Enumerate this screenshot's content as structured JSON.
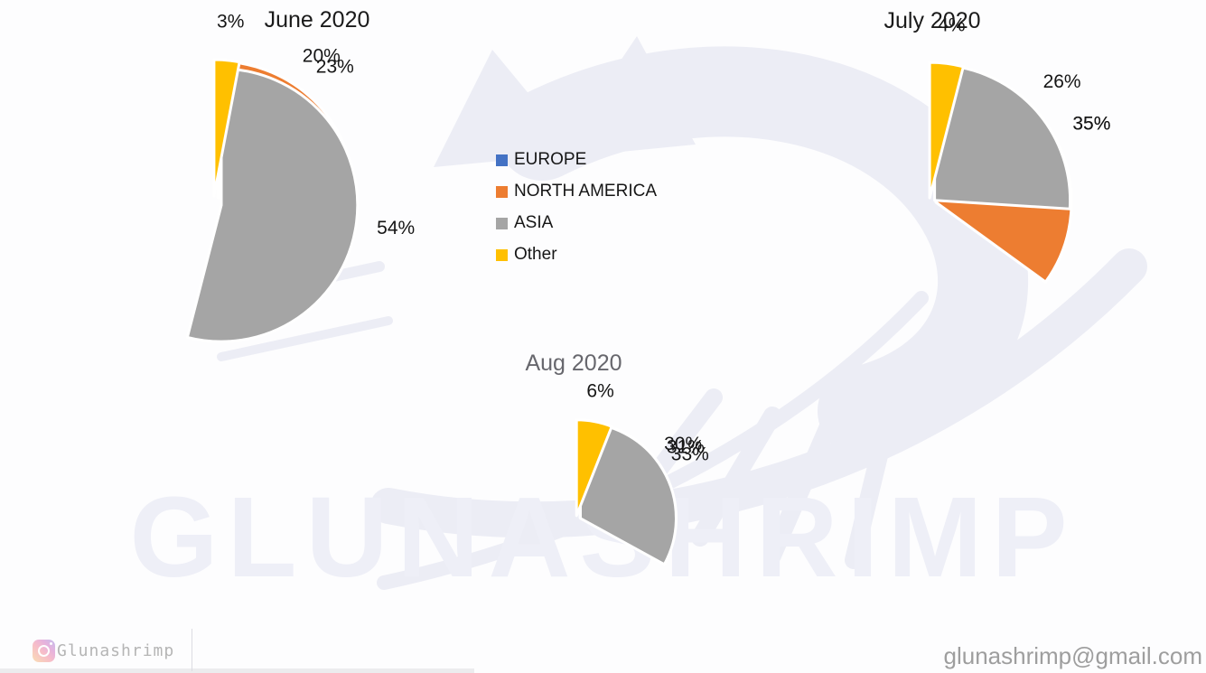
{
  "watermark": {
    "brand_text": "GLUNASHRIMP",
    "instagram_handle": "Glunashrimp",
    "email": "glunashrimp@gmail.com"
  },
  "legend": {
    "position": "center-left-of-july-chart",
    "items": [
      {
        "label": "EUROPE",
        "color": "#4472C4"
      },
      {
        "label": "NORTH AMERICA",
        "color": "#ED7D31"
      },
      {
        "label": "ASIA",
        "color": "#A5A5A5"
      },
      {
        "label": "Other",
        "color": "#FFC000"
      }
    ]
  },
  "chart_data": [
    {
      "type": "pie",
      "title": "June 2020",
      "title_color": "#1a1a1a",
      "categories": [
        "EUROPE",
        "NORTH AMERICA",
        "ASIA",
        "Other"
      ],
      "values": [
        20,
        23,
        54,
        3
      ],
      "labels": [
        "20%",
        "23%",
        "54%",
        "3%"
      ],
      "colors": [
        "#4472C4",
        "#ED7D31",
        "#A5A5A5",
        "#FFC000"
      ],
      "start_angle_deg": 0,
      "direction": "clockwise",
      "exploded": true
    },
    {
      "type": "pie",
      "title": "July 2020",
      "title_color": "#1a1a1a",
      "categories": [
        "EUROPE",
        "NORTH AMERICA",
        "ASIA",
        "Other"
      ],
      "values": [
        35,
        35,
        26,
        4
      ],
      "labels": [
        "35%",
        "35%",
        "26%",
        "4%"
      ],
      "colors": [
        "#4472C4",
        "#ED7D31",
        "#A5A5A5",
        "#FFC000"
      ],
      "start_angle_deg": 0,
      "direction": "clockwise",
      "exploded": true
    },
    {
      "type": "pie",
      "title": "Aug 2020",
      "title_color": "#67676d",
      "categories": [
        "EUROPE",
        "NORTH AMERICA",
        "ASIA",
        "Other"
      ],
      "values": [
        31,
        30,
        33,
        6
      ],
      "labels": [
        "31%",
        "30%",
        "33%",
        "6%"
      ],
      "colors": [
        "#4472C4",
        "#ED7D31",
        "#A5A5A5",
        "#FFC000"
      ],
      "start_angle_deg": 0,
      "direction": "clockwise",
      "exploded": true
    }
  ]
}
